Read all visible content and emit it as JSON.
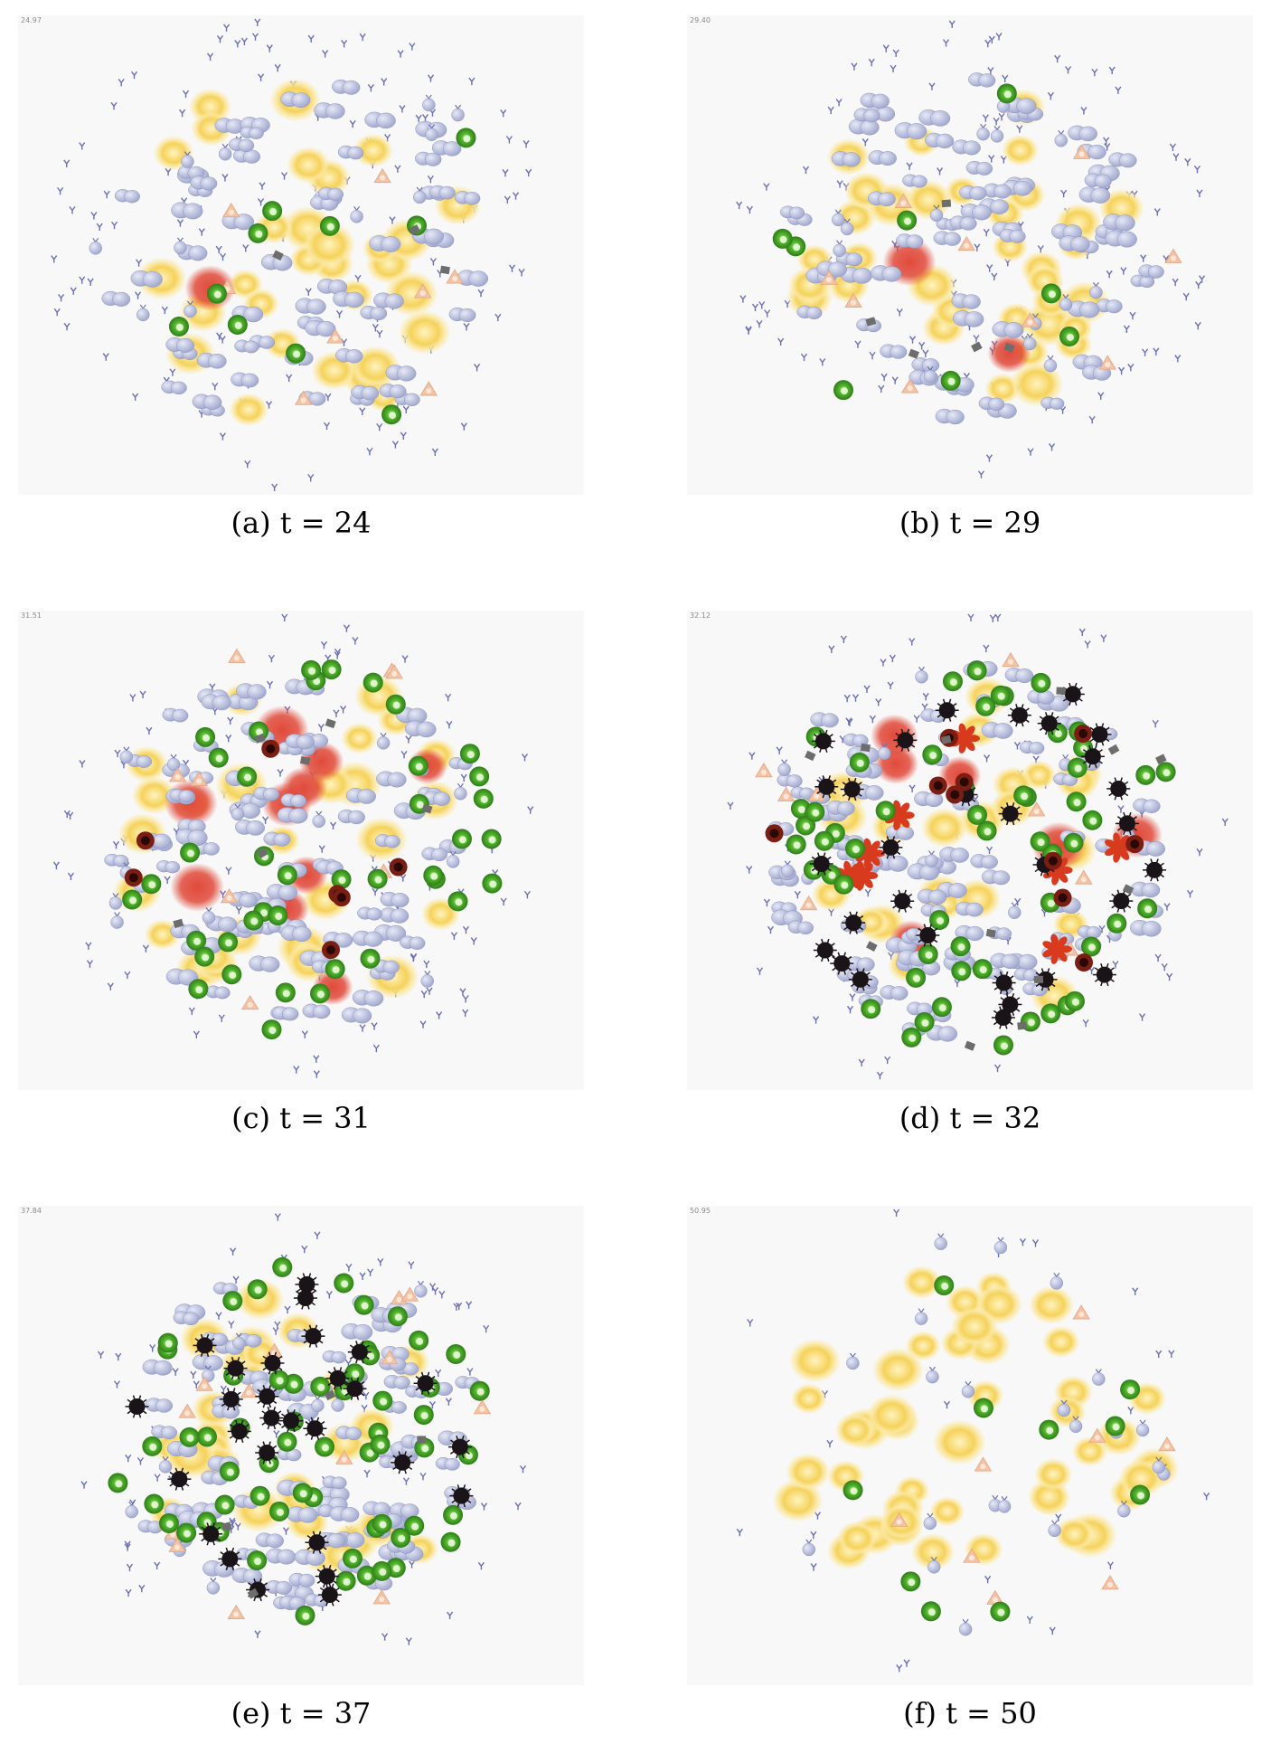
{
  "figure": {
    "panels": [
      {
        "caption": "(a) t = 24",
        "timestamp": "24.97",
        "counts": {
          "yellow": 30,
          "gray_pairs": 60,
          "gray_single": 12,
          "green": 10,
          "red": 1,
          "black": 0,
          "dark_red": 0,
          "red_star": 0,
          "salmon": 8,
          "antibody": 150,
          "debris": 3
        }
      },
      {
        "caption": "(b) t = 29",
        "timestamp": "29.40",
        "counts": {
          "yellow": 34,
          "gray_pairs": 70,
          "gray_single": 14,
          "green": 8,
          "red": 2,
          "black": 0,
          "dark_red": 0,
          "red_star": 0,
          "salmon": 9,
          "antibody": 140,
          "debris": 5
        }
      },
      {
        "caption": "(c) t = 31",
        "timestamp": "31.51",
        "counts": {
          "yellow": 26,
          "gray_pairs": 85,
          "gray_single": 14,
          "green": 40,
          "red": 10,
          "black": 0,
          "dark_red": 7,
          "red_star": 0,
          "salmon": 8,
          "antibody": 120,
          "debris": 6
        }
      },
      {
        "caption": "(d) t = 32",
        "timestamp": "32.12",
        "counts": {
          "yellow": 22,
          "gray_pairs": 90,
          "gray_single": 12,
          "green": 55,
          "red": 6,
          "black": 30,
          "dark_red": 10,
          "red_star": 8,
          "salmon": 8,
          "antibody": 90,
          "debris": 12
        }
      },
      {
        "caption": "(e) t = 37",
        "timestamp": "37.84",
        "counts": {
          "yellow": 26,
          "gray_pairs": 90,
          "gray_single": 10,
          "green": 60,
          "red": 0,
          "black": 28,
          "dark_red": 0,
          "red_star": 0,
          "salmon": 14,
          "antibody": 100,
          "debris": 4
        }
      },
      {
        "caption": "(f) t = 50",
        "timestamp": "50.95",
        "counts": {
          "yellow": 45,
          "gray_pairs": 0,
          "gray_single": 22,
          "green": 10,
          "red": 0,
          "black": 0,
          "dark_red": 0,
          "red_star": 0,
          "salmon": 8,
          "antibody": 25,
          "debris": 0
        }
      }
    ],
    "colors": {
      "background": "#f8f8f8",
      "yellow_cell": "#f5d25a",
      "yellow_glow": "#fbe9a6",
      "gray_cell": "#a3aacf",
      "gray_highlight": "#e6e9f6",
      "green_cell": "#52b52b",
      "green_dark": "#2e7d1a",
      "red_cell": "#e04a3a",
      "black_cell": "#1a1418",
      "dark_red_cell": "#7a1e14",
      "red_star": "#d83a1e",
      "salmon_cell": "#f3c3a4",
      "antibody": "#6a6fb8",
      "debris": "#6d6d6d"
    },
    "icons": [
      "yellow-cell-icon",
      "gray-cell-icon",
      "green-cell-icon",
      "red-cell-icon",
      "black-cell-icon",
      "antibody-icon"
    ]
  }
}
